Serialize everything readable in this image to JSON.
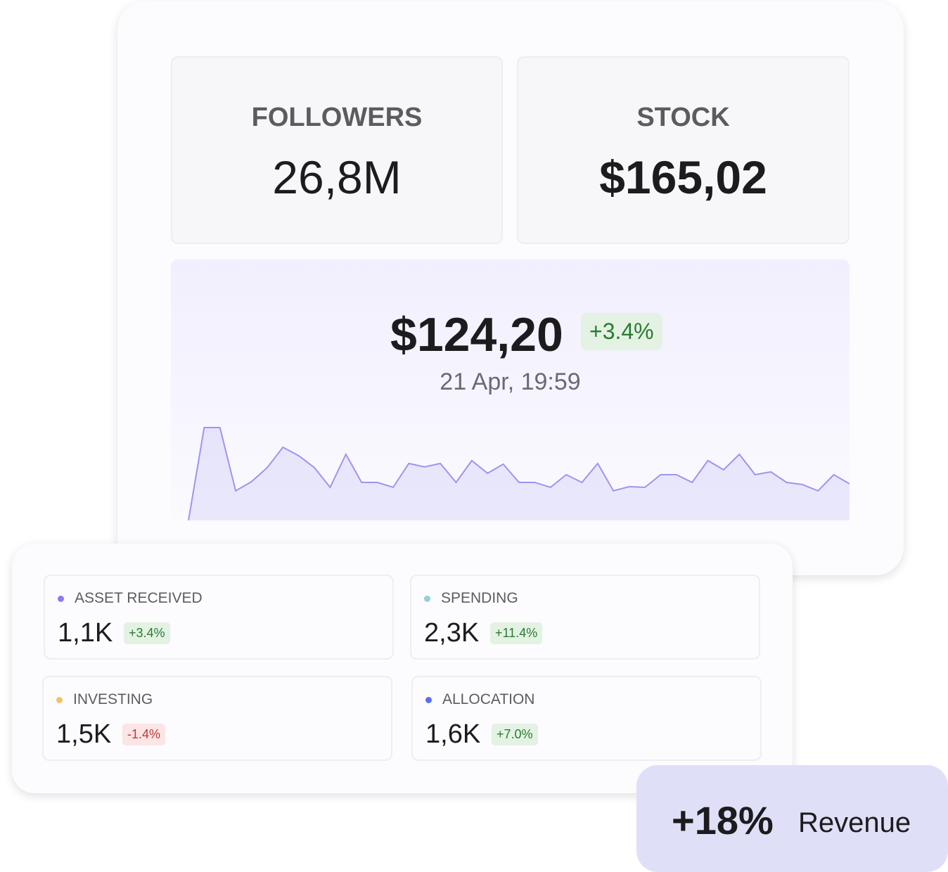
{
  "top_card": {
    "tiles": [
      {
        "label": "FOLLOWERS",
        "value": "26,8M"
      },
      {
        "label": "STOCK",
        "value": "$165,02"
      }
    ],
    "price": {
      "value": "$124,20",
      "change": "+3.4%",
      "timestamp": "21 Apr, 19:59"
    },
    "sparkline": {
      "type": "area",
      "color": "#9d95ee",
      "ylim": [
        0,
        150
      ],
      "values": [
        0,
        132,
        132,
        42,
        55,
        75,
        104,
        92,
        75,
        47,
        94,
        54,
        54,
        47,
        81,
        76,
        81,
        54,
        85,
        67,
        80,
        54,
        54,
        47,
        65,
        54,
        81,
        42,
        48,
        47,
        65,
        65,
        54,
        85,
        72,
        94,
        65,
        69,
        54,
        51,
        42,
        65,
        52
      ]
    }
  },
  "bottom_card": {
    "metrics": [
      {
        "label": "ASSET RECEIVED",
        "value": "1,1K",
        "change": "+3.4%",
        "dot": "#8b7cf0",
        "trend": "up"
      },
      {
        "label": "SPENDING",
        "value": "2,3K",
        "change": "+11.4%",
        "dot": "#93d3d2",
        "trend": "up"
      },
      {
        "label": "INVESTING",
        "value": "1,5K",
        "change": "-1.4%",
        "dot": "#f5c26b",
        "trend": "down"
      },
      {
        "label": "ALLOCATION",
        "value": "1,6K",
        "change": "+7.0%",
        "dot": "#5b6ef0",
        "trend": "up"
      }
    ]
  },
  "revenue": {
    "value": "+18%",
    "label": "Revenue"
  }
}
